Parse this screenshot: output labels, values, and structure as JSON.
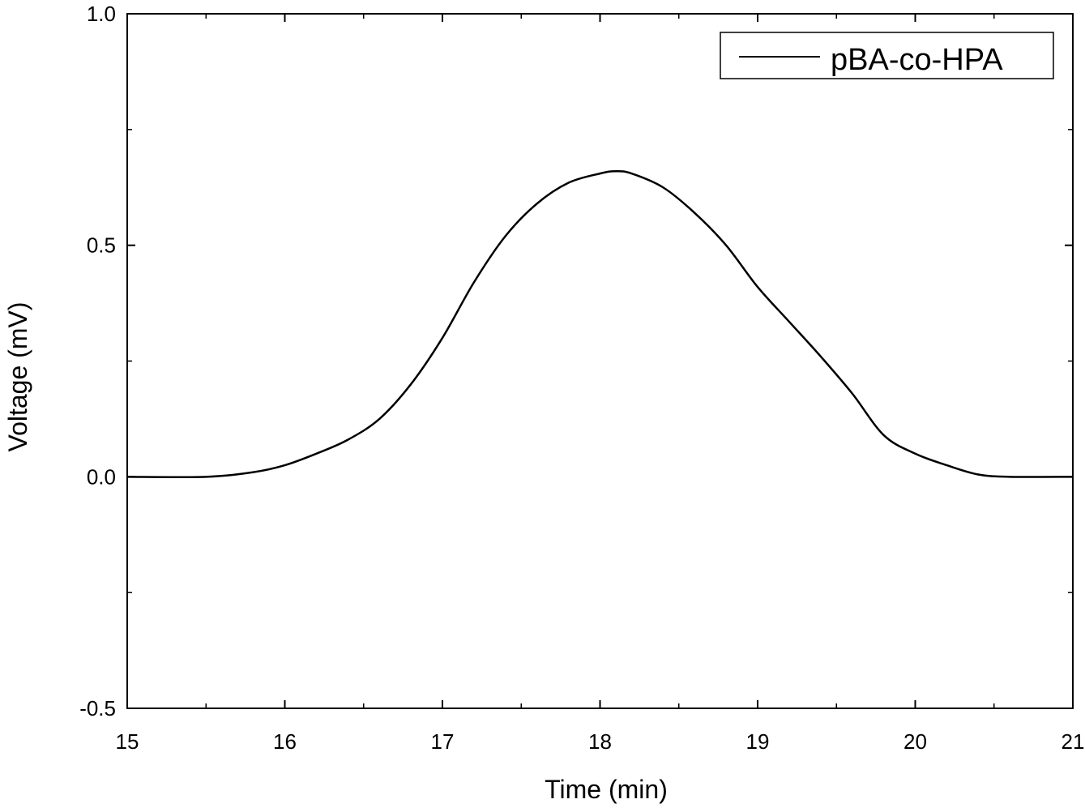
{
  "chart_data": {
    "type": "line",
    "xlabel": "Time  (min)",
    "ylabel": "Voltage (mV)",
    "xlim": [
      15,
      21
    ],
    "ylim": [
      -0.5,
      1.0
    ],
    "x_ticks": [
      15,
      16,
      17,
      18,
      19,
      20,
      21
    ],
    "x_tick_labels": [
      "15",
      "16",
      "17",
      "18",
      "19",
      "20",
      "21"
    ],
    "y_ticks": [
      -0.5,
      0.0,
      0.5,
      1.0
    ],
    "y_tick_labels": [
      "-0.5",
      "0.0",
      "0.5",
      "1.0"
    ],
    "grid": false,
    "legend": {
      "position": "top-right",
      "entries": [
        "pBA-co-HPA"
      ]
    },
    "series": [
      {
        "name": "pBA-co-HPA",
        "color": "#000000",
        "x": [
          15.0,
          15.5,
          15.8,
          16.0,
          16.2,
          16.4,
          16.6,
          16.8,
          17.0,
          17.2,
          17.4,
          17.6,
          17.8,
          18.0,
          18.1,
          18.2,
          18.4,
          18.6,
          18.8,
          19.0,
          19.2,
          19.4,
          19.6,
          19.8,
          20.0,
          20.2,
          20.4,
          20.6,
          21.0
        ],
        "y": [
          0.0,
          0.0,
          0.01,
          0.025,
          0.05,
          0.08,
          0.125,
          0.2,
          0.3,
          0.42,
          0.52,
          0.59,
          0.635,
          0.655,
          0.66,
          0.655,
          0.625,
          0.57,
          0.5,
          0.41,
          0.335,
          0.26,
          0.18,
          0.09,
          0.05,
          0.025,
          0.005,
          0.0,
          0.0
        ]
      }
    ]
  }
}
